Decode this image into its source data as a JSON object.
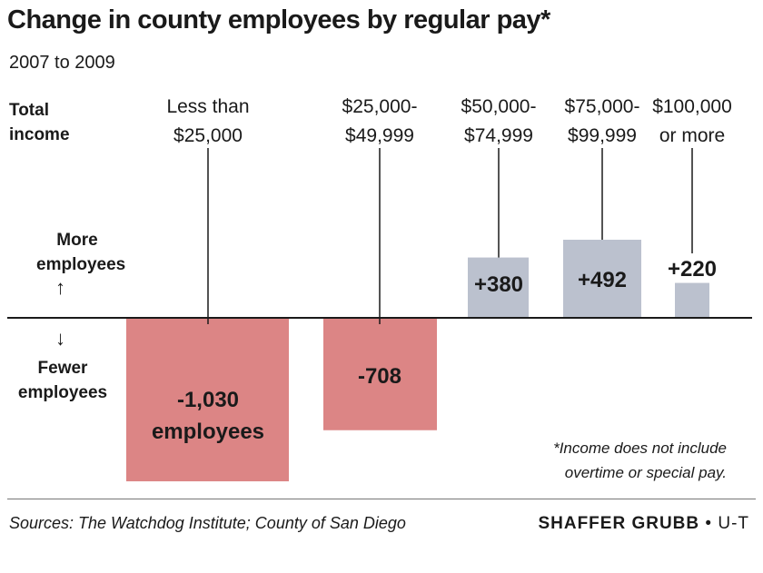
{
  "title": "Change in county employees by regular pay*",
  "subtitle": "2007 to 2009",
  "side_labels": {
    "total_income": [
      "Total",
      "income"
    ],
    "more_employees": [
      "More",
      "employees"
    ],
    "fewer_employees": [
      "Fewer",
      "employees"
    ],
    "arrow_up": "↑",
    "arrow_down": "↓"
  },
  "footnote": [
    "*Income does not include",
    "overtime or special pay."
  ],
  "sources": "Sources: The Watchdog Institute; County of San Diego",
  "credit": {
    "name": "SHAFFER GRUBB",
    "separator": " • ",
    "org": "U-T"
  },
  "colors": {
    "negative": "#dc8585",
    "positive": "#bbc1ce",
    "baseline": "#1a1a1a"
  },
  "chart_data": {
    "type": "bar",
    "title": "Change in county employees by regular pay*",
    "subtitle": "2007 to 2009",
    "categories": [
      [
        "Less than",
        "$25,000"
      ],
      [
        "$25,000-",
        "$49,999"
      ],
      [
        "$50,000-",
        "$74,999"
      ],
      [
        "$75,000-",
        "$99,999"
      ],
      [
        "$100,000",
        "or more"
      ]
    ],
    "values": [
      -1030,
      -708,
      380,
      492,
      220
    ],
    "value_labels": [
      [
        "-1,030",
        "employees"
      ],
      [
        "-708"
      ],
      [
        "+380"
      ],
      [
        "+492"
      ],
      [
        "+220"
      ]
    ],
    "xlabel": "Total income",
    "ylabel": "",
    "ylim": [
      -1030,
      492
    ],
    "grid": false,
    "legend": "none"
  }
}
